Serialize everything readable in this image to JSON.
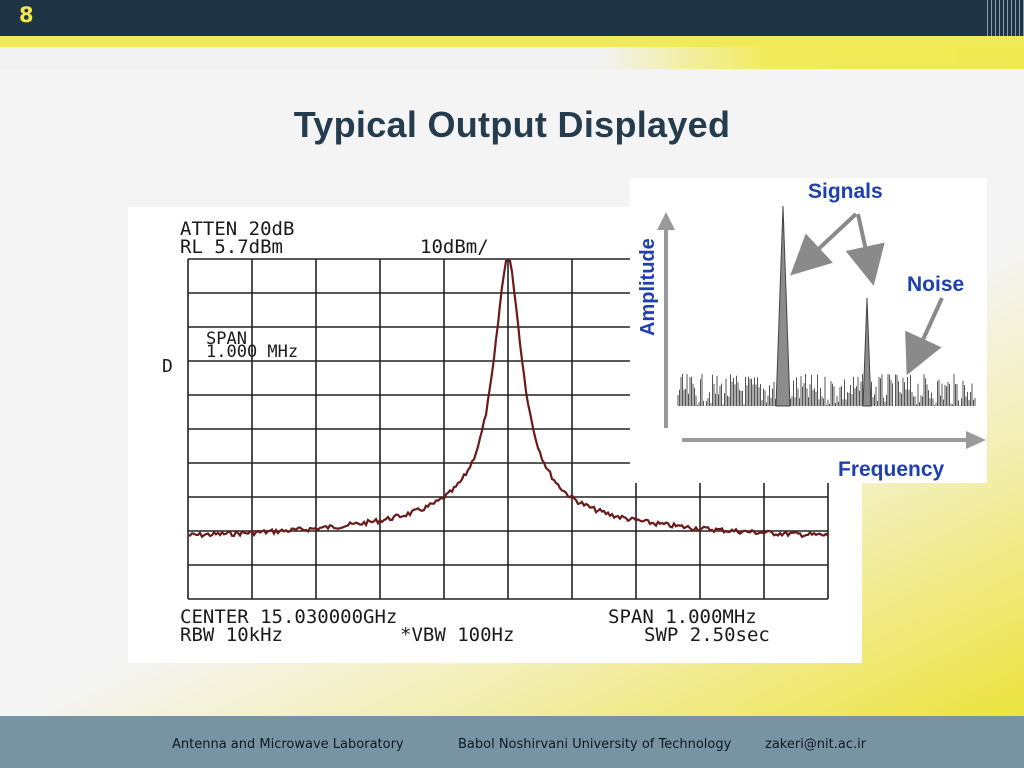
{
  "slide_number": "8",
  "title": "Typical Output Displayed",
  "analyzer": {
    "atten": "ATTEN 20dB",
    "rl": "RL 5.7dBm",
    "scale": "10dBm/",
    "span_box_line1": "SPAN",
    "span_box_line2": "1.000 MHz",
    "d_marker": "D",
    "center": "CENTER 15.030000GHz",
    "rbw": "RBW 10kHz",
    "vbw": "*VBW 100Hz",
    "span": "SPAN 1.000MHz",
    "swp": "SWP 2.50sec",
    "trace_color": "#6b1a1a",
    "span_color": "#3a5fb8"
  },
  "diagram": {
    "signals_label": "Signals",
    "noise_label": "Noise",
    "amplitude_label": "Amplitude",
    "frequency_label": "Frequency",
    "label_color": "#1e3fb0"
  },
  "footer": {
    "lab": "Antenna and Microwave Laboratory",
    "university": "Babol Noshirvani University of Technology",
    "email": "zakeri@nit.ac.ir"
  }
}
